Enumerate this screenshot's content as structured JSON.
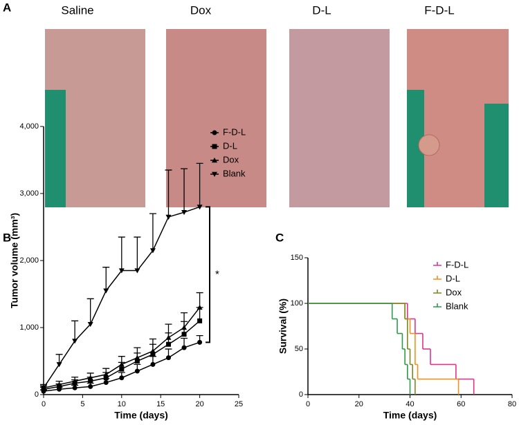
{
  "panel_a": {
    "label": "A",
    "photos": [
      "Saline",
      "Dox",
      "D-L",
      "F-D-L"
    ]
  },
  "chart_data": [
    {
      "type": "line",
      "panel_label": "B",
      "x_label": "Time (days)",
      "y_label": "Tumor volume (mm³)",
      "annotation": "*",
      "x": [
        0,
        2,
        4,
        6,
        8,
        10,
        12,
        14,
        16,
        18,
        20
      ],
      "xlim": [
        0,
        25
      ],
      "xticks": [
        0,
        5,
        10,
        15,
        20,
        25
      ],
      "ylim": [
        0,
        4000
      ],
      "yticks": [
        0,
        {
          "value": 1000,
          "label": "1,000"
        },
        {
          "value": 2000,
          "label": "2,000"
        },
        {
          "value": 3000,
          "label": "3,000"
        },
        {
          "value": 4000,
          "label": "4,000"
        }
      ],
      "series": [
        {
          "name": "F-D-L",
          "color": "#000000",
          "marker": "circle",
          "values": [
            50,
            80,
            100,
            120,
            180,
            250,
            350,
            450,
            550,
            700,
            780
          ],
          "errors": [
            20,
            30,
            40,
            50,
            60,
            80,
            100,
            120,
            130,
            140,
            100
          ]
        },
        {
          "name": "D-L",
          "color": "#000000",
          "marker": "square",
          "values": [
            80,
            120,
            170,
            200,
            250,
            380,
            500,
            600,
            750,
            900,
            1100
          ],
          "errors": [
            30,
            40,
            50,
            60,
            80,
            100,
            120,
            150,
            170,
            190,
            200
          ]
        },
        {
          "name": "Dox",
          "color": "#000000",
          "marker": "triangle-up",
          "values": [
            100,
            150,
            200,
            250,
            300,
            450,
            550,
            650,
            850,
            1000,
            1300
          ],
          "errors": [
            30,
            50,
            60,
            70,
            90,
            120,
            150,
            180,
            200,
            220,
            220
          ]
        },
        {
          "name": "Blank",
          "color": "#000000",
          "marker": "triangle-down",
          "values": [
            100,
            450,
            800,
            1050,
            1550,
            1850,
            1850,
            2150,
            2650,
            2720,
            2800
          ],
          "errors": [
            50,
            150,
            300,
            380,
            350,
            500,
            500,
            550,
            700,
            650,
            650
          ]
        }
      ]
    },
    {
      "type": "step",
      "panel_label": "C",
      "x_label": "Time (days)",
      "y_label": "Survival (%)",
      "xlim": [
        0,
        80
      ],
      "xticks": [
        0,
        20,
        40,
        60,
        80
      ],
      "ylim": [
        0,
        150
      ],
      "yticks": [
        0,
        50,
        100,
        150
      ],
      "series": [
        {
          "name": "F-D-L",
          "color": "#e0338f",
          "x": [
            0,
            39,
            42,
            45,
            48,
            58,
            65
          ],
          "values": [
            100,
            83,
            67,
            50,
            33,
            17,
            0
          ]
        },
        {
          "name": "D-L",
          "color": "#f0901e",
          "x": [
            0,
            38,
            40,
            42,
            43,
            59
          ],
          "values": [
            100,
            83,
            67,
            33,
            17,
            0
          ]
        },
        {
          "name": "Dox",
          "color": "#7a8a1e",
          "x": [
            0,
            38,
            39,
            40,
            41,
            42
          ],
          "values": [
            100,
            83,
            50,
            33,
            17,
            0
          ]
        },
        {
          "name": "Blank",
          "color": "#2e9a4a",
          "x": [
            0,
            33,
            35,
            37,
            38,
            39,
            40
          ],
          "values": [
            100,
            83,
            67,
            50,
            33,
            17,
            0
          ]
        }
      ]
    }
  ]
}
